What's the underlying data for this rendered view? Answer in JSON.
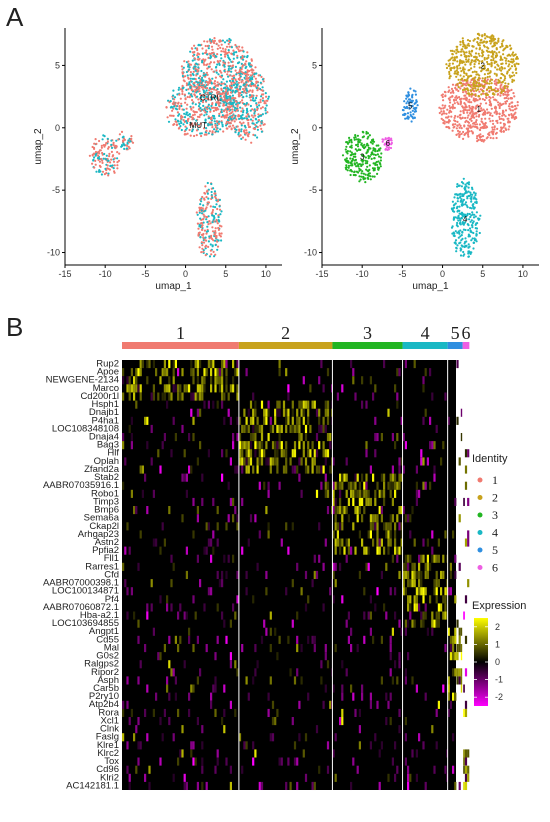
{
  "panels": {
    "a_label": "A",
    "b_label": "B"
  },
  "chart_data": [
    {
      "type": "scatter",
      "panel": "A-left",
      "xlabel": "umap_1",
      "ylabel": "umap_2",
      "xlim": [
        -15,
        12
      ],
      "ylim": [
        -11,
        8
      ],
      "x_ticks": [
        "-15",
        "-10",
        "-5",
        "0",
        "5",
        "10"
      ],
      "y_ticks": [
        "5",
        "0",
        "-5",
        "-10"
      ],
      "grid": false,
      "groups": [
        {
          "name": "CTRL",
          "color": "#19B8C4"
        },
        {
          "name": "MUT",
          "color": "#F07A70"
        }
      ],
      "annotations": [
        "CTRL",
        "MUT"
      ],
      "regions": [
        {
          "cx": 4,
          "cy": 4.5,
          "rx": 4.5,
          "ry": 2.6
        },
        {
          "cx": 2,
          "cy": 1.5,
          "rx": 4.5,
          "ry": 2.2
        },
        {
          "cx": 7.5,
          "cy": 2,
          "rx": 2.8,
          "ry": 3
        },
        {
          "cx": 3,
          "cy": -7.5,
          "rx": 1.6,
          "ry": 3
        },
        {
          "cx": -10,
          "cy": -2.3,
          "rx": 1.8,
          "ry": 1.6
        },
        {
          "cx": -7.5,
          "cy": -1,
          "rx": 1,
          "ry": 0.8
        }
      ]
    },
    {
      "type": "scatter",
      "panel": "A-right",
      "xlabel": "umap_1",
      "ylabel": "umap_2",
      "xlim": [
        -15,
        12
      ],
      "ylim": [
        -11,
        8
      ],
      "x_ticks": [
        "-15",
        "-10",
        "-5",
        "0",
        "5",
        "10"
      ],
      "y_ticks": [
        "5",
        "0",
        "-5",
        "-10"
      ],
      "grid": false,
      "clusters": [
        {
          "label": "1",
          "color": "#F07A70",
          "cx": 4.5,
          "cy": 1.5,
          "rx": 5,
          "ry": 2.6
        },
        {
          "label": "2",
          "color": "#C8A21C",
          "cx": 5,
          "cy": 5,
          "rx": 4.5,
          "ry": 2.5
        },
        {
          "label": "3",
          "color": "#22B522",
          "cx": -10,
          "cy": -2.3,
          "rx": 2.4,
          "ry": 2.1
        },
        {
          "label": "4",
          "color": "#19B8C4",
          "cx": 2.8,
          "cy": -7.3,
          "rx": 1.8,
          "ry": 3.2
        },
        {
          "label": "5",
          "color": "#2F8FE0",
          "cx": -4,
          "cy": 1.8,
          "rx": 0.9,
          "ry": 1.5
        },
        {
          "label": "6",
          "color": "#EE5FE3",
          "cx": -6.8,
          "cy": -1.2,
          "rx": 0.6,
          "ry": 0.6
        }
      ]
    },
    {
      "type": "heatmap",
      "panel": "B",
      "columns": [
        {
          "label": "1",
          "color": "#F07A70",
          "fraction": 0.35
        },
        {
          "label": "2",
          "color": "#C8A21C",
          "fraction": 0.28
        },
        {
          "label": "3",
          "color": "#22B522",
          "fraction": 0.21
        },
        {
          "label": "4",
          "color": "#19B8C4",
          "fraction": 0.135
        },
        {
          "label": "5",
          "color": "#2F8FE0",
          "fraction": 0.045
        },
        {
          "label": "6",
          "color": "#EE5FE3",
          "fraction": 0.02
        }
      ],
      "rows": [
        "Rup2",
        "Apoe",
        "NEWGENE-2134",
        "Marco",
        "Cd200r1l",
        "Hsph1",
        "Dnajb1",
        "P4ha1",
        "LOC108348108",
        "Dnaja4",
        "Bag3",
        "Hlf",
        "Oplah",
        "Zfand2a",
        "Stab2",
        "AABR07035916.1",
        "Robo1",
        "Timp3",
        "Bmp6",
        "Sema6a",
        "Ckap2l",
        "Arhgap23",
        "Astn2",
        "Ppfia2",
        "Fll1",
        "Rarres1",
        "Cfd",
        "AABR07000398.1",
        "LOC100134871",
        "Pf4",
        "AABR07060872.1",
        "Hba-a2.1",
        "LOC103694855",
        "Angpt1",
        "Cd55",
        "Mal",
        "G0s2",
        "Ralgps2",
        "Ripor2",
        "Asph",
        "Car5b",
        "P2ry10",
        "Atp2b4",
        "Rora",
        "Xcl1",
        "Clnk",
        "Faslg",
        "Klre1",
        "Klrc2",
        "Tox",
        "Cd96",
        "Klri2",
        "AC142181.1"
      ],
      "row_marker_cluster": [
        1,
        1,
        1,
        1,
        1,
        2,
        2,
        2,
        2,
        2,
        2,
        2,
        2,
        2,
        3,
        3,
        3,
        3,
        3,
        3,
        3,
        3,
        3,
        3,
        4,
        4,
        4,
        4,
        4,
        4,
        4,
        4,
        4,
        5,
        5,
        5,
        5,
        5,
        5,
        5,
        5,
        5,
        5,
        6,
        6,
        6,
        6,
        6,
        6,
        6,
        6,
        6,
        6
      ],
      "legend_identity": {
        "title": "Identity",
        "labels": [
          "1",
          "2",
          "3",
          "4",
          "5",
          "6"
        ]
      },
      "legend_expression": {
        "title": "Expression",
        "ticks": [
          "2",
          "1",
          "0",
          "-1",
          "-2"
        ],
        "range": [
          -2.5,
          2.5
        ],
        "colors": [
          "#FF00FF",
          "#000000",
          "#FFFF00"
        ]
      }
    }
  ]
}
